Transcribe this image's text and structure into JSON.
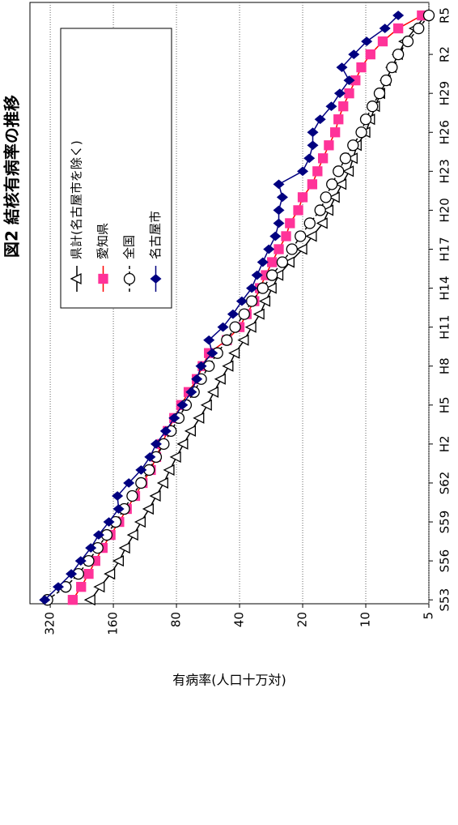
{
  "chart_data": {
    "type": "line",
    "title": "図2 結核有病率の推移",
    "y_label": "有病率(人口十万対)",
    "log_y": true,
    "grid": true,
    "legend": "upper right",
    "rotated": true,
    "x": [
      1978,
      1979,
      1980,
      1981,
      1982,
      1983,
      1984,
      1985,
      1986,
      1987,
      1988,
      1989,
      1990,
      1991,
      1992,
      1993,
      1994,
      1995,
      1996,
      1997,
      1998,
      1999,
      2000,
      2001,
      2002,
      2003,
      2004,
      2005,
      2006,
      2007,
      2008,
      2009,
      2010,
      2011,
      2012,
      2013,
      2014,
      2015,
      2016,
      2017,
      2018,
      2019,
      2020,
      2021,
      2022,
      2023
    ],
    "xlim": [
      1977.7,
      2024
    ],
    "xticks": [
      {
        "value": 1978,
        "label": "S53"
      },
      {
        "value": 1981,
        "label": "S56"
      },
      {
        "value": 1984,
        "label": "S59"
      },
      {
        "value": 1987,
        "label": "S62"
      },
      {
        "value": 1990,
        "label": "H2"
      },
      {
        "value": 1993,
        "label": "H5"
      },
      {
        "value": 1996,
        "label": "H8"
      },
      {
        "value": 1999,
        "label": "H11"
      },
      {
        "value": 2002,
        "label": "H14"
      },
      {
        "value": 2005,
        "label": "H17"
      },
      {
        "value": 2008,
        "label": "H20"
      },
      {
        "value": 2011,
        "label": "H23"
      },
      {
        "value": 2014,
        "label": "H26"
      },
      {
        "value": 2017,
        "label": "H29"
      },
      {
        "value": 2020,
        "label": "R2"
      },
      {
        "value": 2023,
        "label": "R5"
      }
    ],
    "ylim": [
      5,
      400
    ],
    "yticks": [
      5,
      10,
      20,
      40,
      80,
      160,
      320
    ],
    "series": [
      {
        "name": "県計(名古屋市を除く)",
        "color": "#000000",
        "marker": "triangle",
        "marker_fill": "#ffffff",
        "dashed": false,
        "values": [
          205,
          185,
          165,
          150,
          140,
          128,
          118,
          108,
          100,
          92,
          86,
          80,
          74,
          68,
          62,
          57,
          53,
          49,
          45,
          42,
          38,
          35,
          32,
          30,
          28,
          26,
          23,
          20,
          18,
          16,
          15,
          14,
          13,
          12,
          11.5,
          11,
          10,
          9.5,
          9,
          8.5,
          8,
          7.5,
          7,
          6.5,
          5.8,
          5.2
        ]
      },
      {
        "name": "愛知県",
        "color": "#ff0000",
        "marker": "square",
        "marker_fill": "#ff3399",
        "dashed": false,
        "values": [
          250,
          228,
          210,
          195,
          180,
          165,
          150,
          138,
          126,
          116,
          106,
          100,
          94,
          88,
          82,
          76,
          70,
          64,
          60,
          56,
          46,
          40,
          37,
          34,
          32,
          30,
          28,
          26,
          24,
          23,
          21,
          20,
          18,
          17,
          16,
          15,
          14,
          13.5,
          12.8,
          12,
          11.2,
          10.5,
          9.5,
          8.3,
          7,
          5.4
        ]
      },
      {
        "name": "全国",
        "color": "#000000",
        "marker": "circle",
        "marker_fill": "#ffffff",
        "dashed": true,
        "values": [
          330,
          270,
          235,
          210,
          190,
          172,
          156,
          142,
          130,
          118,
          108,
          100,
          92,
          85,
          78,
          72,
          66,
          61,
          56,
          51,
          46,
          42,
          38,
          35,
          31,
          28,
          25,
          22.5,
          20.5,
          18.5,
          16.5,
          15.5,
          14.5,
          13.5,
          12.5,
          11.5,
          10.5,
          10,
          9.3,
          8.6,
          8,
          7.5,
          7,
          6.3,
          5.6,
          5
        ]
      },
      {
        "name": "名古屋市",
        "color": "#000080",
        "marker": "diamond",
        "marker_fill": "#000080",
        "dashed": false,
        "values": [
          340,
          293,
          254,
          229,
          205,
          188,
          168,
          151,
          153,
          135,
          118,
          107,
          100,
          90,
          82,
          75,
          68,
          64,
          61,
          54,
          56,
          48,
          43,
          39,
          35,
          33,
          31,
          29,
          27,
          26,
          26,
          25,
          26,
          20,
          18.6,
          17.9,
          17.9,
          16.5,
          14.6,
          13.3,
          12,
          13,
          11.4,
          9.9,
          8.1,
          7
        ]
      }
    ]
  }
}
